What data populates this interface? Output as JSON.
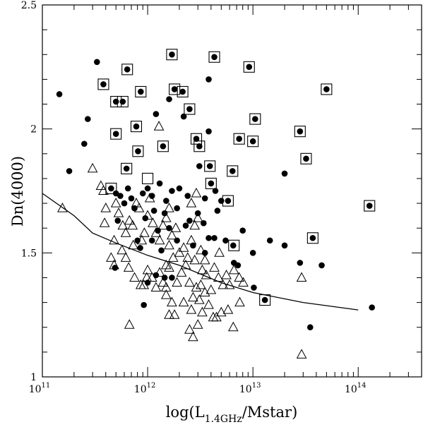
{
  "chart_data": {
    "type": "scatter",
    "xscale": "log",
    "xlim": [
      100000000000.0,
      400000000000000.0
    ],
    "ylim": [
      1,
      2.5
    ],
    "xlabel_parts": {
      "prefix": "log(L",
      "subscript": "1.4GHz",
      "suffix": "/Mstar)"
    },
    "ylabel": "Dn(4000)",
    "x_ticks": [
      {
        "value": 100000000000.0,
        "base": "10",
        "exp": "11"
      },
      {
        "value": 1000000000000.0,
        "base": "10",
        "exp": "12"
      },
      {
        "value": 10000000000000.0,
        "base": "10",
        "exp": "13"
      },
      {
        "value": 100000000000000.0,
        "base": "10",
        "exp": "14"
      }
    ],
    "y_ticks": [
      {
        "value": 1,
        "label": "1"
      },
      {
        "value": 1.5,
        "label": "1.5"
      },
      {
        "value": 2,
        "label": "2"
      },
      {
        "value": 2.5,
        "label": "2.5"
      }
    ],
    "series": [
      {
        "marker": "filled-circle",
        "points": [
          [
            145000000000.0,
            2.14
          ],
          [
            180000000000.0,
            1.83
          ],
          [
            250000000000.0,
            1.94
          ],
          [
            270000000000.0,
            2.04
          ],
          [
            330000000000.0,
            2.27
          ],
          [
            380000000000.0,
            2.18
          ],
          [
            500000000000.0,
            2.11
          ],
          [
            580000000000.0,
            2.11
          ],
          [
            640000000000.0,
            2.24
          ],
          [
            780000000000.0,
            2.01
          ],
          [
            860000000000.0,
            2.15
          ],
          [
            630000000000.0,
            1.84
          ],
          [
            500000000000.0,
            1.98
          ],
          [
            810000000000.0,
            1.91
          ],
          [
            1600000000000.0,
            2.12
          ],
          [
            1700000000000.0,
            2.3
          ],
          [
            1800000000000.0,
            2.16
          ],
          [
            2150000000000.0,
            2.15
          ],
          [
            2500000000000.0,
            2.08
          ],
          [
            4300000000000.0,
            2.29
          ],
          [
            3800000000000.0,
            2.2
          ],
          [
            2900000000000.0,
            1.96
          ],
          [
            3800000000000.0,
            1.99
          ],
          [
            3100000000000.0,
            1.93
          ],
          [
            1400000000000.0,
            1.93
          ],
          [
            1200000000000.0,
            2.06
          ],
          [
            2200000000000.0,
            2.05
          ],
          [
            3100000000000.0,
            1.85
          ],
          [
            3900000000000.0,
            1.85
          ],
          [
            6400000000000.0,
            1.83
          ],
          [
            7400000000000.0,
            1.96
          ],
          [
            10500000000000.0,
            2.04
          ],
          [
            10000000000000.0,
            1.95
          ],
          [
            9200000000000.0,
            2.25
          ],
          [
            28000000000000.0,
            1.99
          ],
          [
            32000000000000.0,
            1.88
          ],
          [
            50000000000000.0,
            2.16
          ],
          [
            20000000000000.0,
            1.82
          ],
          [
            450000000000.0,
            1.76
          ],
          [
            500000000000.0,
            1.74
          ],
          [
            550000000000.0,
            1.73
          ],
          [
            600000000000.0,
            1.7
          ],
          [
            650000000000.0,
            1.76
          ],
          [
            700000000000.0,
            1.72
          ],
          [
            750000000000.0,
            1.68
          ],
          [
            520000000000.0,
            1.63
          ],
          [
            900000000000.0,
            1.74
          ],
          [
            1000000000000.0,
            1.76
          ],
          [
            1100000000000.0,
            1.73
          ],
          [
            1300000000000.0,
            1.78
          ],
          [
            1500000000000.0,
            1.71
          ],
          [
            1700000000000.0,
            1.75
          ],
          [
            2000000000000.0,
            1.76
          ],
          [
            2400000000000.0,
            1.73
          ],
          [
            1900000000000.0,
            1.68
          ],
          [
            1450000000000.0,
            1.66
          ],
          [
            1600000000000.0,
            1.6
          ],
          [
            2300000000000.0,
            1.61
          ],
          [
            1150000000000.0,
            1.67
          ],
          [
            1250000000000.0,
            1.59
          ],
          [
            950000000000.0,
            1.64
          ],
          [
            800000000000.0,
            1.55
          ],
          [
            850000000000.0,
            1.52
          ],
          [
            1100000000000.0,
            1.55
          ],
          [
            1350000000000.0,
            1.51
          ],
          [
            1900000000000.0,
            1.55
          ],
          [
            3500000000000.0,
            1.72
          ],
          [
            4000000000000.0,
            1.78
          ],
          [
            3000000000000.0,
            1.66
          ],
          [
            2500000000000.0,
            1.63
          ],
          [
            4400000000000.0,
            1.75
          ],
          [
            5000000000000.0,
            1.71
          ],
          [
            5800000000000.0,
            1.71
          ],
          [
            4600000000000.0,
            1.67
          ],
          [
            3400000000000.0,
            1.62
          ],
          [
            3800000000000.0,
            1.56
          ],
          [
            4300000000000.0,
            1.56
          ],
          [
            5500000000000.0,
            1.55
          ],
          [
            3500000000000.0,
            1.5
          ],
          [
            2700000000000.0,
            1.53
          ],
          [
            6500000000000.0,
            1.53
          ],
          [
            6600000000000.0,
            1.46
          ],
          [
            7200000000000.0,
            1.45
          ],
          [
            8000000000000.0,
            1.59
          ],
          [
            10000000000000.0,
            1.5
          ],
          [
            14500000000000.0,
            1.55
          ],
          [
            20000000000000.0,
            1.53
          ],
          [
            28000000000000.0,
            1.46
          ],
          [
            45000000000000.0,
            1.45
          ],
          [
            37000000000000.0,
            1.56
          ],
          [
            10200000000000.0,
            1.36
          ],
          [
            13000000000000.0,
            1.31
          ],
          [
            135000000000000.0,
            1.28
          ],
          [
            35000000000000.0,
            1.2
          ],
          [
            128000000000000.0,
            1.69
          ],
          [
            490000000000.0,
            1.44
          ],
          [
            1000000000000.0,
            1.38
          ],
          [
            1200000000000.0,
            1.41
          ],
          [
            1450000000000.0,
            1.4
          ],
          [
            1700000000000.0,
            1.4
          ],
          [
            920000000000.0,
            1.29
          ]
        ]
      },
      {
        "marker": "boxed-circle",
        "points": [
          [
            380000000000.0,
            2.18
          ],
          [
            640000000000.0,
            2.24
          ],
          [
            1700000000000.0,
            2.3
          ],
          [
            4300000000000.0,
            2.29
          ],
          [
            9200000000000.0,
            2.25
          ],
          [
            1800000000000.0,
            2.16
          ],
          [
            2150000000000.0,
            2.15
          ],
          [
            50000000000000.0,
            2.16
          ],
          [
            500000000000.0,
            2.11
          ],
          [
            580000000000.0,
            2.11
          ],
          [
            860000000000.0,
            2.15
          ],
          [
            2500000000000.0,
            2.08
          ],
          [
            10500000000000.0,
            2.04
          ],
          [
            780000000000.0,
            2.01
          ],
          [
            28000000000000.0,
            1.99
          ],
          [
            500000000000.0,
            1.98
          ],
          [
            1400000000000.0,
            1.93
          ],
          [
            2900000000000.0,
            1.96
          ],
          [
            3100000000000.0,
            1.93
          ],
          [
            7400000000000.0,
            1.96
          ],
          [
            10000000000000.0,
            1.95
          ],
          [
            810000000000.0,
            1.91
          ],
          [
            32000000000000.0,
            1.88
          ],
          [
            630000000000.0,
            1.84
          ],
          [
            3900000000000.0,
            1.85
          ],
          [
            6400000000000.0,
            1.83
          ],
          [
            1000000000000.0,
            1.8
          ],
          [
            4000000000000.0,
            1.78
          ],
          [
            450000000000.0,
            1.76
          ],
          [
            5800000000000.0,
            1.71
          ],
          [
            128000000000000.0,
            1.69
          ],
          [
            37000000000000.0,
            1.56
          ],
          [
            6600000000000.0,
            1.53
          ],
          [
            13000000000000.0,
            1.31
          ]
        ]
      },
      {
        "marker": "open-triangle",
        "points": [
          [
            155000000000.0,
            1.68
          ],
          [
            300000000000.0,
            1.84
          ],
          [
            360000000000.0,
            1.77
          ],
          [
            380000000000.0,
            1.75
          ],
          [
            400000000000.0,
            1.68
          ],
          [
            390000000000.0,
            1.62
          ],
          [
            480000000000.0,
            1.55
          ],
          [
            500000000000.0,
            1.7
          ],
          [
            530000000000.0,
            1.66
          ],
          [
            580000000000.0,
            1.61
          ],
          [
            620000000000.0,
            1.58
          ],
          [
            670000000000.0,
            1.63
          ],
          [
            720000000000.0,
            1.61
          ],
          [
            780000000000.0,
            1.7
          ],
          [
            830000000000.0,
            1.68
          ],
          [
            570000000000.0,
            1.51
          ],
          [
            620000000000.0,
            1.48
          ],
          [
            730000000000.0,
            1.53
          ],
          [
            660000000000.0,
            1.44
          ],
          [
            450000000000.0,
            1.48
          ],
          [
            480000000000.0,
            1.45
          ],
          [
            880000000000.0,
            1.55
          ],
          [
            930000000000.0,
            1.58
          ],
          [
            1000000000000.0,
            1.65
          ],
          [
            1050000000000.0,
            1.72
          ],
          [
            1120000000000.0,
            1.62
          ],
          [
            1200000000000.0,
            1.58
          ],
          [
            1300000000000.0,
            1.55
          ],
          [
            1400000000000.0,
            1.61
          ],
          [
            1500000000000.0,
            1.64
          ],
          [
            1600000000000.0,
            1.68
          ],
          [
            1280000000000.0,
            2.01
          ],
          [
            1600000000000.0,
            1.53
          ],
          [
            1700000000000.0,
            1.57
          ],
          [
            1850000000000.0,
            1.6
          ],
          [
            2000000000000.0,
            1.5
          ],
          [
            2200000000000.0,
            1.52
          ],
          [
            2400000000000.0,
            1.48
          ],
          [
            2600000000000.0,
            1.55
          ],
          [
            2800000000000.0,
            1.61
          ],
          [
            3000000000000.0,
            1.64
          ],
          [
            3200000000000.0,
            1.51
          ],
          [
            3500000000000.0,
            1.47
          ],
          [
            2600000000000.0,
            1.7
          ],
          [
            2900000000000.0,
            1.74
          ],
          [
            3300000000000.0,
            1.43
          ],
          [
            1000000000000.0,
            1.43
          ],
          [
            1100000000000.0,
            1.4
          ],
          [
            1200000000000.0,
            1.36
          ],
          [
            1300000000000.0,
            1.42
          ],
          [
            1400000000000.0,
            1.38
          ],
          [
            1500000000000.0,
            1.45
          ],
          [
            1600000000000.0,
            1.44
          ],
          [
            1750000000000.0,
            1.48
          ],
          [
            1900000000000.0,
            1.38
          ],
          [
            2100000000000.0,
            1.42
          ],
          [
            2300000000000.0,
            1.45
          ],
          [
            2500000000000.0,
            1.38
          ],
          [
            2700000000000.0,
            1.32
          ],
          [
            2900000000000.0,
            1.36
          ],
          [
            3200000000000.0,
            1.37
          ],
          [
            3600000000000.0,
            1.41
          ],
          [
            4000000000000.0,
            1.35
          ],
          [
            4300000000000.0,
            1.44
          ],
          [
            4700000000000.0,
            1.4
          ],
          [
            5200000000000.0,
            1.37
          ],
          [
            5600000000000.0,
            1.41
          ],
          [
            6000000000000.0,
            1.37
          ],
          [
            6600000000000.0,
            1.43
          ],
          [
            7400000000000.0,
            1.4
          ],
          [
            8100000000000.0,
            1.38
          ],
          [
            920000000000.0,
            1.37
          ],
          [
            980000000000.0,
            1.4
          ],
          [
            1500000000000.0,
            1.33
          ],
          [
            1700000000000.0,
            1.3
          ],
          [
            1800000000000.0,
            1.25
          ],
          [
            1600000000000.0,
            1.25
          ],
          [
            2200000000000.0,
            1.3
          ],
          [
            2500000000000.0,
            1.19
          ],
          [
            2700000000000.0,
            1.16
          ],
          [
            3000000000000.0,
            1.21
          ],
          [
            2600000000000.0,
            1.27
          ],
          [
            3100000000000.0,
            1.31
          ],
          [
            3500000000000.0,
            1.34
          ],
          [
            3800000000000.0,
            1.29
          ],
          [
            4200000000000.0,
            1.24
          ],
          [
            4500000000000.0,
            1.24
          ],
          [
            5000000000000.0,
            1.26
          ],
          [
            5800000000000.0,
            1.27
          ],
          [
            6500000000000.0,
            1.2
          ],
          [
            7500000000000.0,
            1.3
          ],
          [
            670000000000.0,
            1.21
          ],
          [
            860000000000.0,
            1.37
          ],
          [
            750000000000.0,
            1.4
          ],
          [
            29000000000000.0,
            1.4
          ],
          [
            29000000000000.0,
            1.09
          ],
          [
            1500000000000.0,
            1.36
          ],
          [
            3300000000000.0,
            1.26
          ],
          [
            2800000000000.0,
            1.47
          ],
          [
            4800000000000.0,
            1.5
          ]
        ]
      }
    ],
    "curve": {
      "x": [
        100000000000.0,
        200000000000.0,
        300000000000.0,
        500000000000.0,
        1000000000000.0,
        2000000000000.0,
        5000000000000.0,
        10000000000000.0,
        30000000000000.0,
        100000000000000.0
      ],
      "y": [
        1.74,
        1.65,
        1.58,
        1.54,
        1.49,
        1.45,
        1.38,
        1.34,
        1.3,
        1.27
      ]
    }
  }
}
